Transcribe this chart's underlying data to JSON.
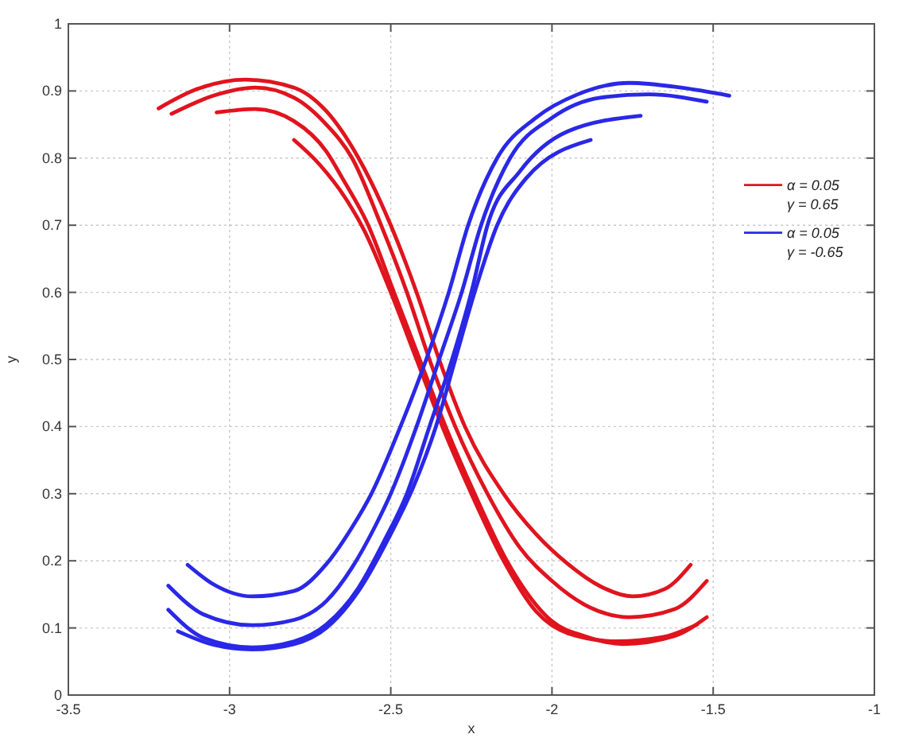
{
  "chart_data": {
    "type": "line",
    "xlabel": "x",
    "ylabel": "y",
    "xlim": [
      -3.5,
      -1
    ],
    "xticks": [
      -3.5,
      -3,
      -2.5,
      -2,
      -1.5,
      -1
    ],
    "ylim": [
      0,
      1
    ],
    "yticks": [
      0,
      0.1,
      0.2,
      0.3,
      0.4,
      0.5,
      0.6,
      0.7,
      0.8,
      0.9,
      1
    ],
    "grid": true,
    "legend": "right",
    "series": [
      {
        "name": "α = 0.05\nγ = 0.65",
        "color": "#e0141e",
        "x": [
          -3.22,
          -3.1,
          -2.95,
          -2.8,
          -2.7,
          -2.6,
          -2.5,
          -2.42,
          -2.35,
          -2.27,
          -2.15,
          -2.05,
          -1.95,
          -1.85,
          -1.75,
          -1.65,
          -1.57
        ],
        "values": [
          0.874,
          0.903,
          0.917,
          0.905,
          0.87,
          0.8,
          0.7,
          0.6,
          0.5,
          0.4,
          0.3,
          0.24,
          0.195,
          0.162,
          0.147,
          0.158,
          0.194
        ]
      },
      {
        "color": "#e0141e",
        "x": [
          -3.18,
          -3.05,
          -2.92,
          -2.8,
          -2.7,
          -2.62,
          -2.53,
          -2.45,
          -2.38,
          -2.3,
          -2.2,
          -2.1,
          -2.0,
          -1.9,
          -1.76,
          -1.62,
          -1.52
        ],
        "values": [
          0.866,
          0.893,
          0.905,
          0.89,
          0.85,
          0.8,
          0.7,
          0.6,
          0.5,
          0.4,
          0.3,
          0.22,
          0.17,
          0.135,
          0.116,
          0.128,
          0.17
        ]
      },
      {
        "color": "#e0141e",
        "x": [
          -3.04,
          -2.92,
          -2.8,
          -2.7,
          -2.65,
          -2.57,
          -2.49,
          -2.41,
          -2.33,
          -2.24,
          -2.14,
          -2.0,
          -1.9,
          -1.78,
          -1.62,
          -1.52
        ],
        "values": [
          0.868,
          0.873,
          0.855,
          0.81,
          0.77,
          0.7,
          0.6,
          0.5,
          0.4,
          0.3,
          0.2,
          0.11,
          0.088,
          0.076,
          0.088,
          0.116
        ]
      },
      {
        "color": "#e0141e",
        "x": [
          -2.8,
          -2.72,
          -2.64,
          -2.58,
          -2.5,
          -2.42,
          -2.34,
          -2.25,
          -2.15,
          -2.05,
          -1.95,
          -1.8,
          -1.66,
          -1.55
        ],
        "values": [
          0.827,
          0.79,
          0.74,
          0.69,
          0.6,
          0.5,
          0.4,
          0.3,
          0.2,
          0.125,
          0.092,
          0.08,
          0.086,
          0.105
        ]
      },
      {
        "name": "α = 0.05\nγ = -0.65",
        "color": "#2a28e6",
        "x": [
          -3.13,
          -3.05,
          -2.93,
          -2.8,
          -2.7,
          -2.62,
          -2.56,
          -2.47,
          -2.39,
          -2.32,
          -2.26,
          -2.17,
          -2.05,
          -1.92,
          -1.76,
          -1.6,
          -1.45
        ],
        "values": [
          0.194,
          0.165,
          0.147,
          0.155,
          0.195,
          0.25,
          0.3,
          0.4,
          0.5,
          0.6,
          0.7,
          0.8,
          0.86,
          0.895,
          0.912,
          0.905,
          0.893
        ]
      },
      {
        "color": "#2a28e6",
        "x": [
          -3.19,
          -3.08,
          -2.93,
          -2.8,
          -2.7,
          -2.62,
          -2.55,
          -2.5,
          -2.42,
          -2.35,
          -2.28,
          -2.22,
          -2.13,
          -2.0,
          -1.85,
          -1.7,
          -1.52
        ],
        "values": [
          0.163,
          0.12,
          0.104,
          0.112,
          0.14,
          0.19,
          0.25,
          0.3,
          0.4,
          0.5,
          0.6,
          0.7,
          0.8,
          0.86,
          0.89,
          0.895,
          0.884
        ]
      },
      {
        "color": "#2a28e6",
        "x": [
          -3.19,
          -3.08,
          -2.93,
          -2.8,
          -2.7,
          -2.6,
          -2.52,
          -2.45,
          -2.38,
          -2.31,
          -2.25,
          -2.2,
          -2.1,
          -1.95,
          -1.725
        ],
        "values": [
          0.127,
          0.085,
          0.071,
          0.08,
          0.105,
          0.16,
          0.23,
          0.3,
          0.4,
          0.5,
          0.6,
          0.7,
          0.78,
          0.84,
          0.863
        ]
      },
      {
        "color": "#2a28e6",
        "x": [
          -3.16,
          -3.05,
          -2.93,
          -2.8,
          -2.7,
          -2.6,
          -2.5,
          -2.43,
          -2.36,
          -2.3,
          -2.24,
          -2.17,
          -2.08,
          -1.88
        ],
        "values": [
          0.095,
          0.075,
          0.068,
          0.076,
          0.1,
          0.155,
          0.24,
          0.31,
          0.4,
          0.5,
          0.6,
          0.7,
          0.77,
          0.827
        ]
      }
    ]
  }
}
